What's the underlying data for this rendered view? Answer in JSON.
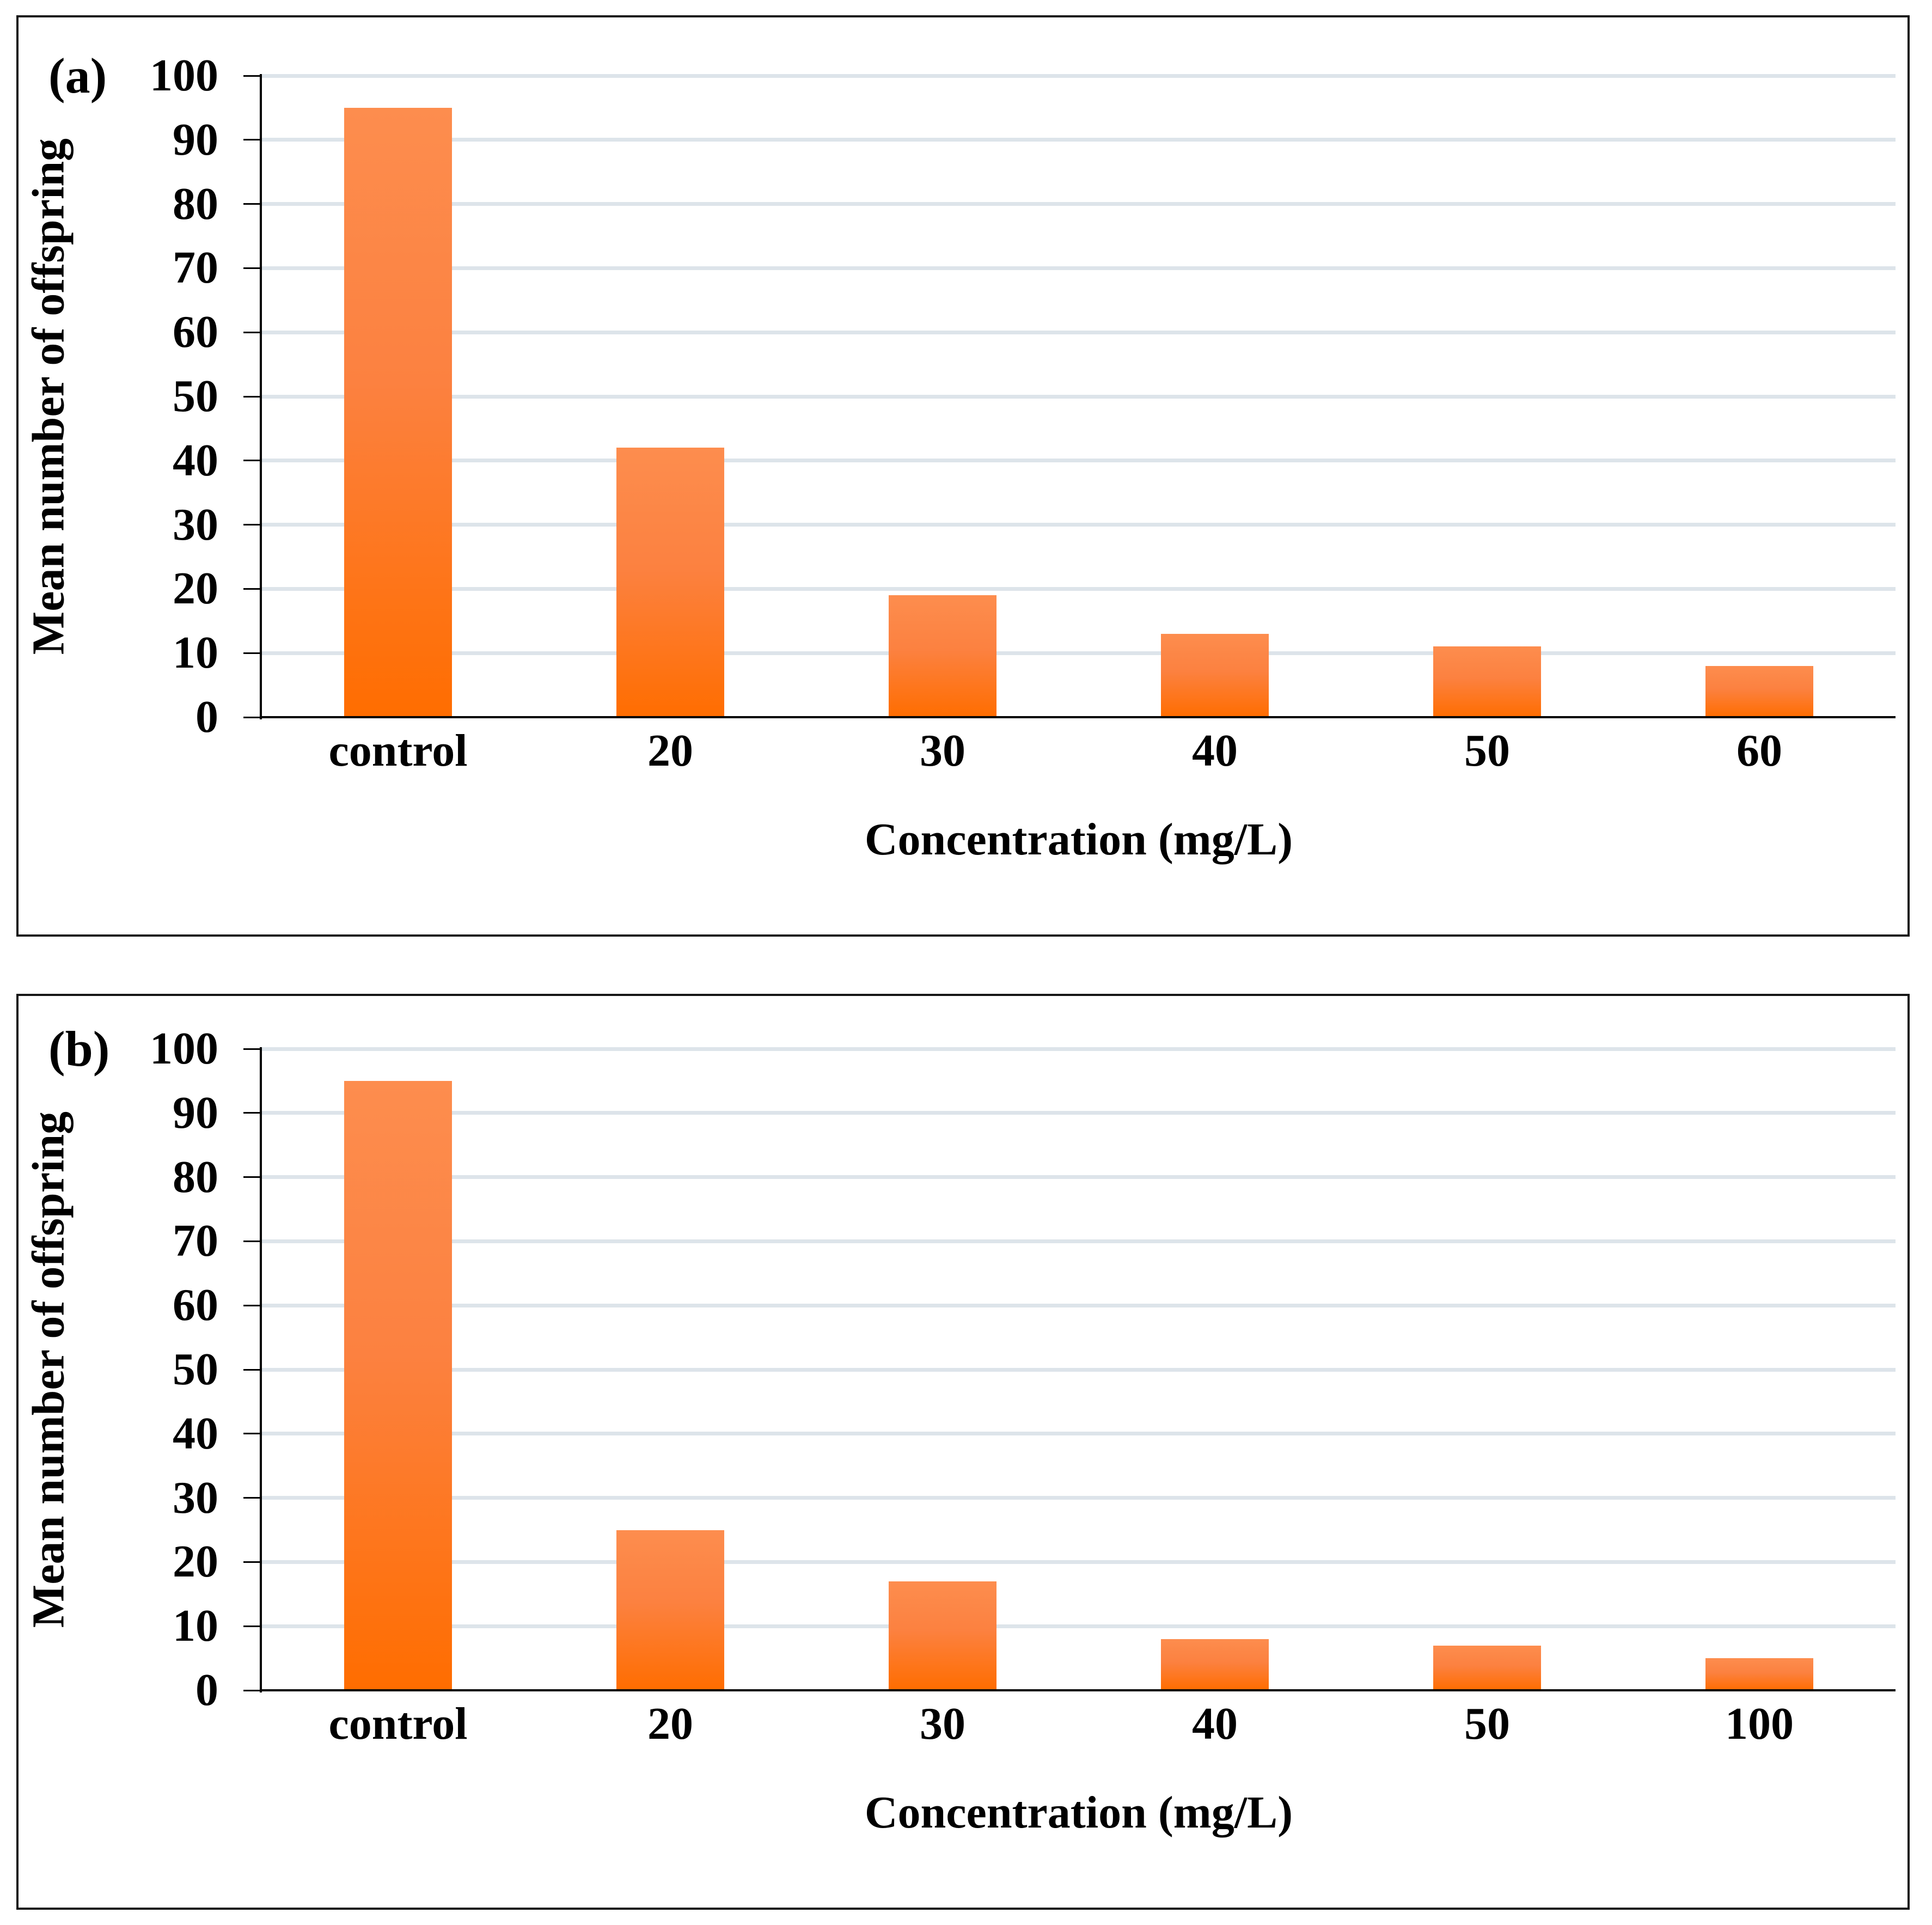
{
  "figure": {
    "description": "Two-panel bar figure of mean number of offspring versus concentration",
    "accent_color": "#ff6d00",
    "gridline_color": "#dde4ea",
    "axis_color": "#000000"
  },
  "chart_data": [
    {
      "type": "bar",
      "panel_label": "(a)",
      "title": "",
      "categories": [
        "control",
        "20",
        "30",
        "40",
        "50",
        "60"
      ],
      "values": [
        95,
        42,
        19,
        13,
        11,
        8
      ],
      "xlabel": "Concentration (mg/L)",
      "ylabel": "Mean number of offspring",
      "ylim": [
        0,
        100
      ],
      "ytick_step": 10,
      "grid": "horizontal",
      "legend": "none",
      "bar_gradient_top": "#fd8d4e",
      "bar_gradient_bottom": "#ff6d00"
    },
    {
      "type": "bar",
      "panel_label": "(b)",
      "title": "",
      "categories": [
        "control",
        "20",
        "30",
        "40",
        "50",
        "100"
      ],
      "values": [
        95,
        25,
        17,
        8,
        7,
        5
      ],
      "xlabel": "Concentration (mg/L)",
      "ylabel": "Mean number of offspring",
      "ylim": [
        0,
        100
      ],
      "ytick_step": 10,
      "grid": "horizontal",
      "legend": "none",
      "bar_gradient_top": "#fd8d4e",
      "bar_gradient_bottom": "#ff6d00"
    }
  ]
}
